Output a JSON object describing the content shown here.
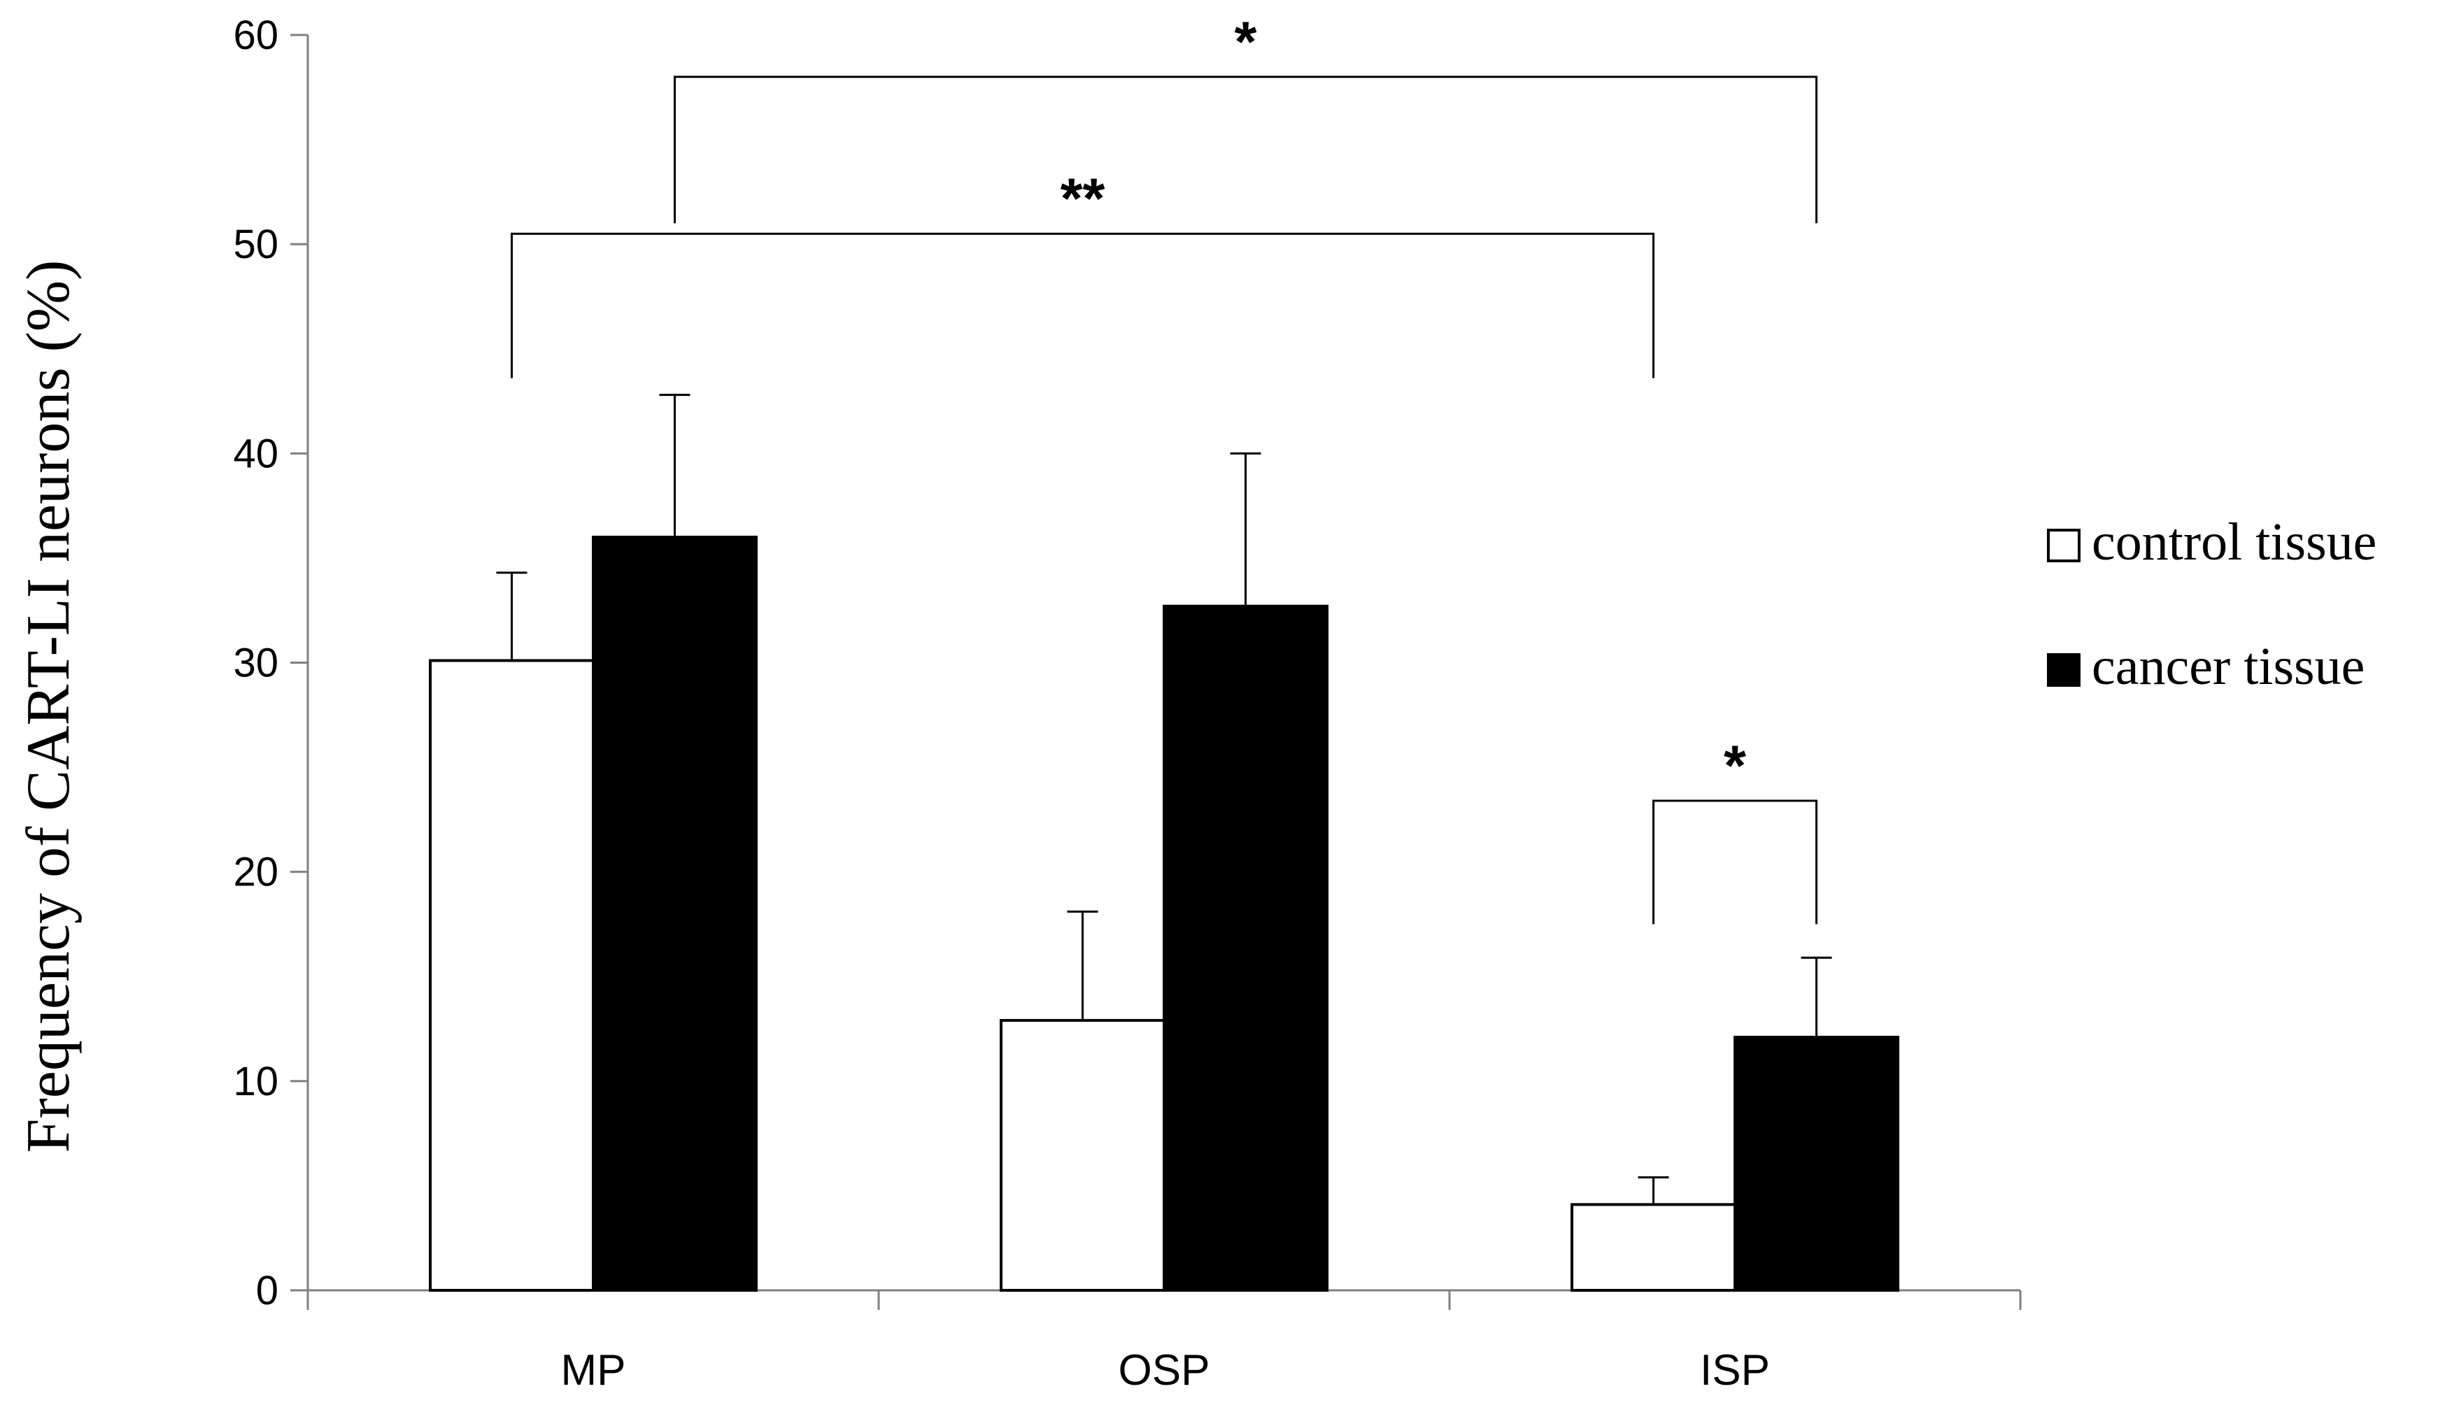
{
  "chart_data": {
    "type": "bar",
    "title": "",
    "xlabel": "",
    "ylabel": "Frequency of CART-LI neurons (%)",
    "ylim": [
      0,
      60
    ],
    "yticks": [
      0,
      10,
      20,
      30,
      40,
      50,
      60
    ],
    "categories": [
      "MP",
      "OSP",
      "ISP"
    ],
    "series": [
      {
        "name": "control tissue",
        "fill": "#ffffff",
        "values": [
          30.1,
          12.9,
          4.1
        ],
        "errors": [
          4.2,
          5.2,
          1.3
        ]
      },
      {
        "name": "cancer tissue",
        "fill": "#000000",
        "values": [
          36.0,
          32.7,
          12.1
        ],
        "errors": [
          6.8,
          7.3,
          3.8
        ]
      }
    ],
    "legend_position": "right",
    "grid": false,
    "significance": [
      {
        "label": "*",
        "from": {
          "category": "MP",
          "series": "cancer tissue"
        },
        "to": {
          "category": "ISP",
          "series": "cancer tissue"
        }
      },
      {
        "label": "**",
        "from": {
          "category": "MP",
          "series": "control tissue"
        },
        "to": {
          "category": "ISP",
          "series": "control tissue"
        }
      },
      {
        "label": "*",
        "from": {
          "category": "ISP",
          "series": "control tissue"
        },
        "to": {
          "category": "ISP",
          "series": "cancer tissue"
        }
      }
    ]
  }
}
